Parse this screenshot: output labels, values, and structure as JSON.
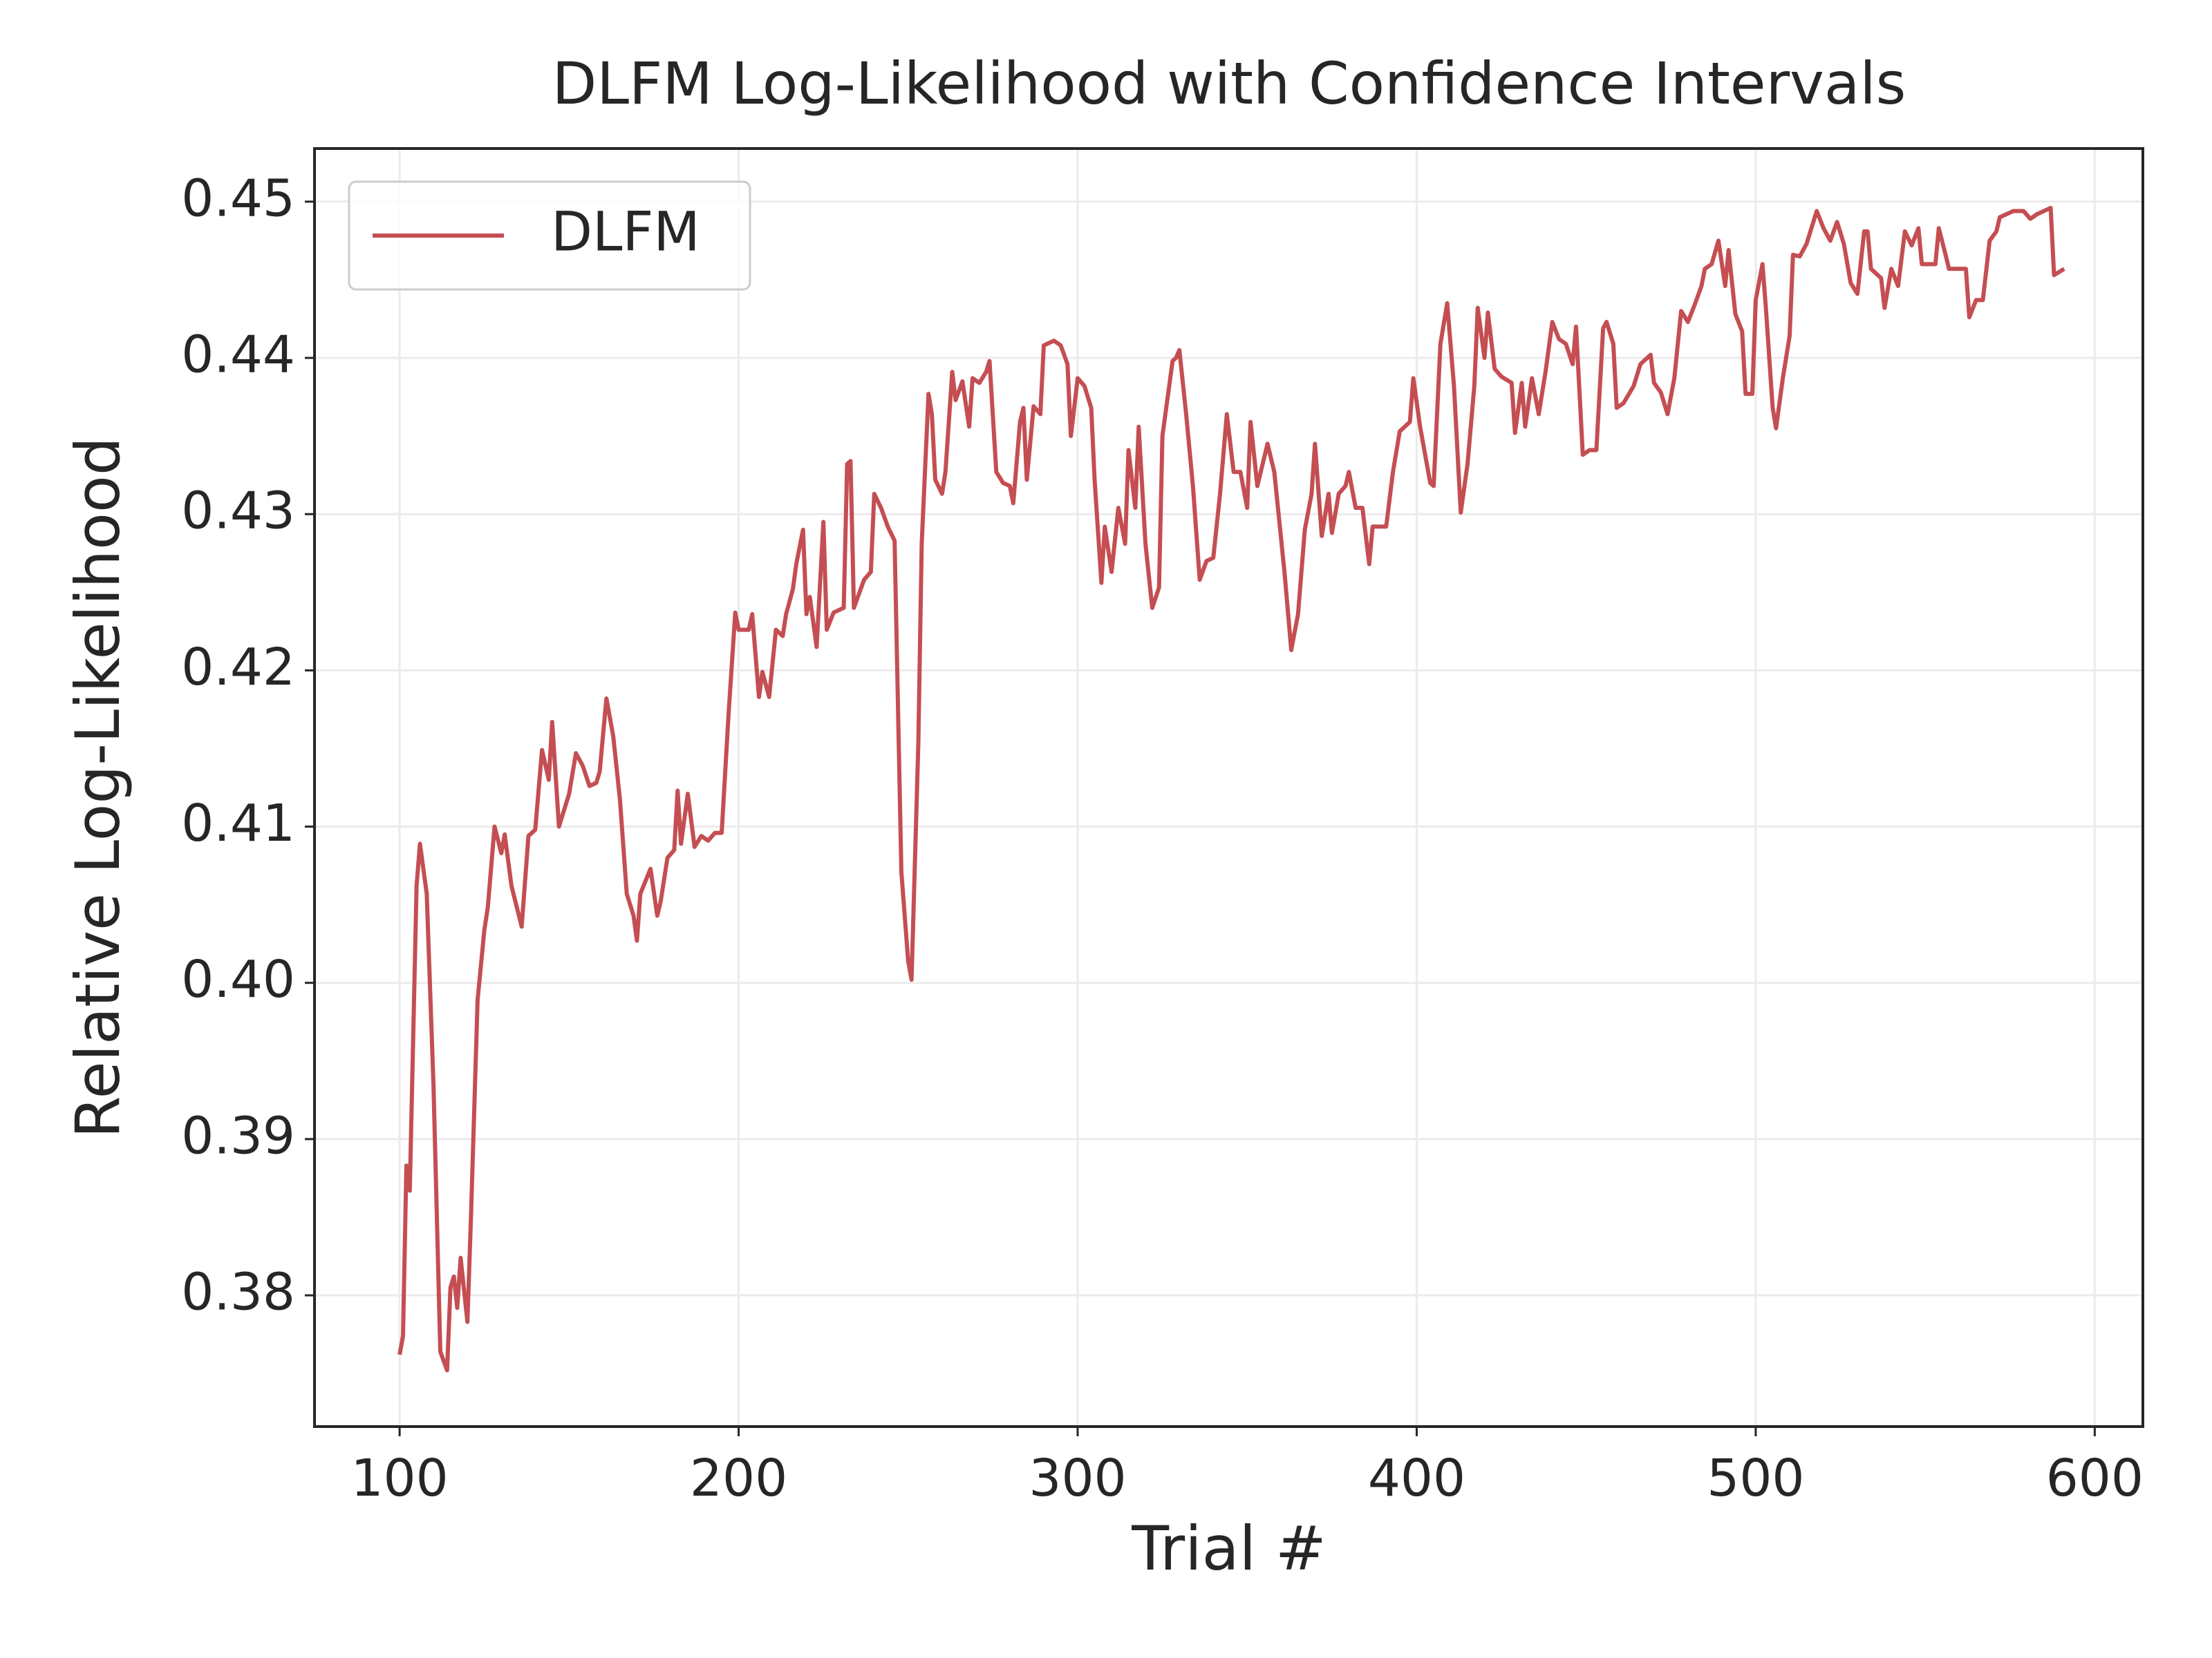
{
  "chart_data": {
    "type": "line",
    "title": "DLFM Log-Likelihood with Confidence Intervals",
    "x_label": "Trial #",
    "y_label": "Relative Log-Likelihood",
    "grid": true,
    "legend": "upper left",
    "xlim": [
      74.9,
      614.2
    ],
    "ylim": [
      0.3716,
      0.4534
    ],
    "xticks": [
      100,
      200,
      300,
      400,
      500,
      600
    ],
    "yticks": [
      0.38,
      0.39,
      {
        "value": 0.4,
        "label": "0.40"
      },
      0.41,
      0.42,
      0.43,
      0.44,
      0.45
    ],
    "x": [
      100,
      101,
      102,
      103,
      105,
      106,
      108,
      110,
      112,
      114,
      115,
      116,
      117,
      118,
      120,
      121,
      123,
      125,
      126,
      128,
      130,
      131,
      133,
      136,
      138,
      140,
      142,
      144,
      145,
      147,
      150,
      152,
      154,
      156,
      158,
      159,
      161,
      163,
      165,
      167,
      169,
      170,
      171,
      174,
      176,
      177,
      179,
      181,
      182,
      183,
      185,
      187,
      189,
      191,
      193,
      195,
      197,
      199,
      200,
      203,
      204,
      206,
      207,
      209,
      211,
      213,
      214,
      216,
      217,
      219,
      220,
      221,
      223,
      225,
      226,
      228,
      231,
      232,
      233,
      234,
      237,
      239,
      240,
      242,
      244,
      246,
      248,
      250,
      251,
      253,
      254,
      256,
      257,
      258,
      260,
      261,
      263,
      264,
      266,
      268,
      269,
      271,
      273,
      274,
      276,
      278,
      280,
      281,
      283,
      284,
      285,
      287,
      289,
      290,
      293,
      295,
      297,
      298,
      300,
      302,
      304,
      305,
      307,
      308,
      310,
      312,
      314,
      315,
      317,
      318,
      320,
      322,
      324,
      325,
      328,
      329,
      330,
      332,
      334,
      336,
      338,
      340,
      342,
      344,
      346,
      348,
      350,
      351,
      353,
      356,
      358,
      361,
      363,
      365,
      367,
      369,
      370,
      372,
      374,
      375,
      377,
      379,
      380,
      382,
      384,
      386,
      387,
      391,
      393,
      395,
      398,
      399,
      401,
      404,
      405,
      407,
      409,
      411,
      413,
      415,
      417,
      418,
      420,
      421,
      423,
      425,
      428,
      429,
      431,
      432,
      434,
      436,
      438,
      440,
      442,
      444,
      446,
      447,
      449,
      451,
      453,
      455,
      456,
      458,
      459,
      461,
      464,
      466,
      469,
      470,
      472,
      474,
      476,
      478,
      480,
      482,
      484,
      485,
      487,
      489,
      491,
      492,
      494,
      496,
      497,
      499,
      500,
      502,
      503,
      505,
      506,
      508,
      510,
      511,
      513,
      515,
      517,
      518,
      520,
      522,
      524,
      526,
      528,
      530,
      532,
      533,
      534,
      537,
      538,
      540,
      542,
      544,
      546,
      548,
      549,
      553,
      554,
      556,
      557,
      562,
      563,
      565,
      567,
      569,
      571,
      572,
      576,
      579,
      581,
      583,
      585,
      587,
      588,
      591
    ],
    "series": [
      {
        "name": "DLFM",
        "color": "#c44e52",
        "values": [
          0.3762,
          0.3774,
          0.3883,
          0.3867,
          0.4062,
          0.4089,
          0.4057,
          0.3934,
          0.3764,
          0.3752,
          0.3805,
          0.3812,
          0.3792,
          0.3824,
          0.3783,
          0.3847,
          0.3989,
          0.4034,
          0.4048,
          0.41,
          0.4083,
          0.4095,
          0.4062,
          0.4036,
          0.4094,
          0.4098,
          0.4149,
          0.413,
          0.4167,
          0.41,
          0.4121,
          0.4147,
          0.4139,
          0.4126,
          0.4128,
          0.4135,
          0.4182,
          0.4158,
          0.4117,
          0.4057,
          0.4043,
          0.4027,
          0.4057,
          0.4073,
          0.4043,
          0.4052,
          0.408,
          0.4085,
          0.4123,
          0.4089,
          0.4121,
          0.4087,
          0.4094,
          0.4091,
          0.4096,
          0.4096,
          0.4171,
          0.4237,
          0.4226,
          0.4226,
          0.4236,
          0.4183,
          0.4199,
          0.4183,
          0.4226,
          0.4222,
          0.4236,
          0.4252,
          0.4268,
          0.429,
          0.4236,
          0.4247,
          0.4215,
          0.4295,
          0.4226,
          0.4237,
          0.424,
          0.4332,
          0.4334,
          0.424,
          0.4258,
          0.4263,
          0.4313,
          0.4304,
          0.4292,
          0.4283,
          0.4071,
          0.4014,
          0.4002,
          0.4153,
          0.4281,
          0.4377,
          0.4364,
          0.4322,
          0.4313,
          0.4327,
          0.4391,
          0.4373,
          0.4385,
          0.4356,
          0.4387,
          0.4384,
          0.4391,
          0.4398,
          0.4327,
          0.432,
          0.4318,
          0.4307,
          0.4359,
          0.4368,
          0.4322,
          0.4369,
          0.4364,
          0.4408,
          0.4411,
          0.4408,
          0.4396,
          0.435,
          0.4387,
          0.4382,
          0.4368,
          0.4322,
          0.4256,
          0.4292,
          0.4263,
          0.4304,
          0.4281,
          0.4341,
          0.4304,
          0.4356,
          0.4281,
          0.424,
          0.4253,
          0.435,
          0.4398,
          0.44,
          0.4405,
          0.4364,
          0.4318,
          0.4258,
          0.427,
          0.4272,
          0.4313,
          0.4364,
          0.4327,
          0.4327,
          0.4304,
          0.4359,
          0.4318,
          0.4345,
          0.4327,
          0.4263,
          0.4213,
          0.4236,
          0.429,
          0.4313,
          0.4345,
          0.4286,
          0.4313,
          0.4288,
          0.4313,
          0.4318,
          0.4327,
          0.4304,
          0.4304,
          0.4268,
          0.4292,
          0.4292,
          0.4327,
          0.4353,
          0.4359,
          0.4387,
          0.4356,
          0.432,
          0.4318,
          0.4409,
          0.4435,
          0.4382,
          0.4301,
          0.4332,
          0.4382,
          0.4432,
          0.44,
          0.4429,
          0.4393,
          0.4388,
          0.4384,
          0.4352,
          0.4384,
          0.4356,
          0.4387,
          0.4364,
          0.4391,
          0.4423,
          0.4412,
          0.4409,
          0.4396,
          0.442,
          0.4338,
          0.4341,
          0.4341,
          0.4419,
          0.4423,
          0.4409,
          0.4368,
          0.4371,
          0.4382,
          0.4396,
          0.4402,
          0.4384,
          0.4378,
          0.4364,
          0.4387,
          0.443,
          0.4423,
          0.4434,
          0.4446,
          0.4457,
          0.446,
          0.4475,
          0.4446,
          0.4469,
          0.4428,
          0.4417,
          0.4377,
          0.4377,
          0.4437,
          0.446,
          0.4432,
          0.4368,
          0.4355,
          0.4387,
          0.4414,
          0.4466,
          0.4465,
          0.4473,
          0.4487,
          0.4494,
          0.4483,
          0.4475,
          0.4487,
          0.4473,
          0.4448,
          0.4441,
          0.4481,
          0.4481,
          0.4457,
          0.4451,
          0.4432,
          0.4457,
          0.4446,
          0.4481,
          0.4472,
          0.4483,
          0.446,
          0.446,
          0.4483,
          0.4466,
          0.4457,
          0.4457,
          0.4426,
          0.4437,
          0.4437,
          0.4475,
          0.4481,
          0.449,
          0.4494,
          0.4494,
          0.4489,
          0.4492,
          0.4494,
          0.4496,
          0.4453,
          0.4457
        ]
      }
    ]
  }
}
